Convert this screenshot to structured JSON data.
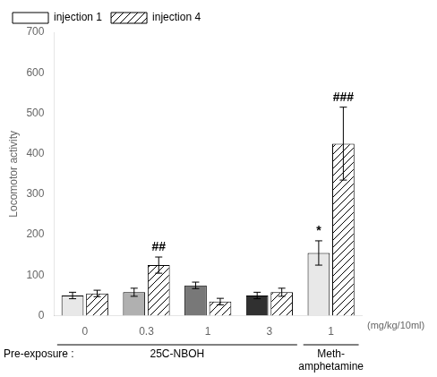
{
  "chart_data": {
    "type": "bar",
    "categories": [
      "0",
      "0.3",
      "1",
      "3",
      "1"
    ],
    "series": [
      {
        "name": "injection 1",
        "colors": [
          "#e8e8e8",
          "#b0b0b0",
          "#787878",
          "#303030",
          "#e8e8e8"
        ],
        "values": [
          50,
          58,
          75,
          50,
          155
        ],
        "errors": [
          8,
          10,
          8,
          8,
          30
        ]
      },
      {
        "name": "injection 4",
        "color": "#ffffff",
        "values": [
          55,
          125,
          35,
          58,
          425
        ],
        "errors": [
          8,
          20,
          8,
          10,
          90
        ]
      }
    ],
    "ylabel": "Locomotor activity",
    "xlabel": "(mg/kg/10ml)",
    "ylim": [
      0,
      700
    ],
    "yticks": [
      0,
      100,
      200,
      300,
      400,
      500,
      600,
      700
    ],
    "grid": false,
    "legend": "upper left",
    "annotations": [
      {
        "text": "##",
        "series": "injection 4",
        "index": 1
      },
      {
        "text": "###",
        "series": "injection 4",
        "index": 4
      },
      {
        "text": "*",
        "series": "injection 1",
        "index": 4
      }
    ],
    "group_labels": [
      {
        "text": "25C-NBOH",
        "first": 0,
        "last": 3
      },
      {
        "text": "Meth-\namphetamine",
        "first": 4,
        "last": 4
      }
    ],
    "row_label": "Pre-exposure :"
  }
}
